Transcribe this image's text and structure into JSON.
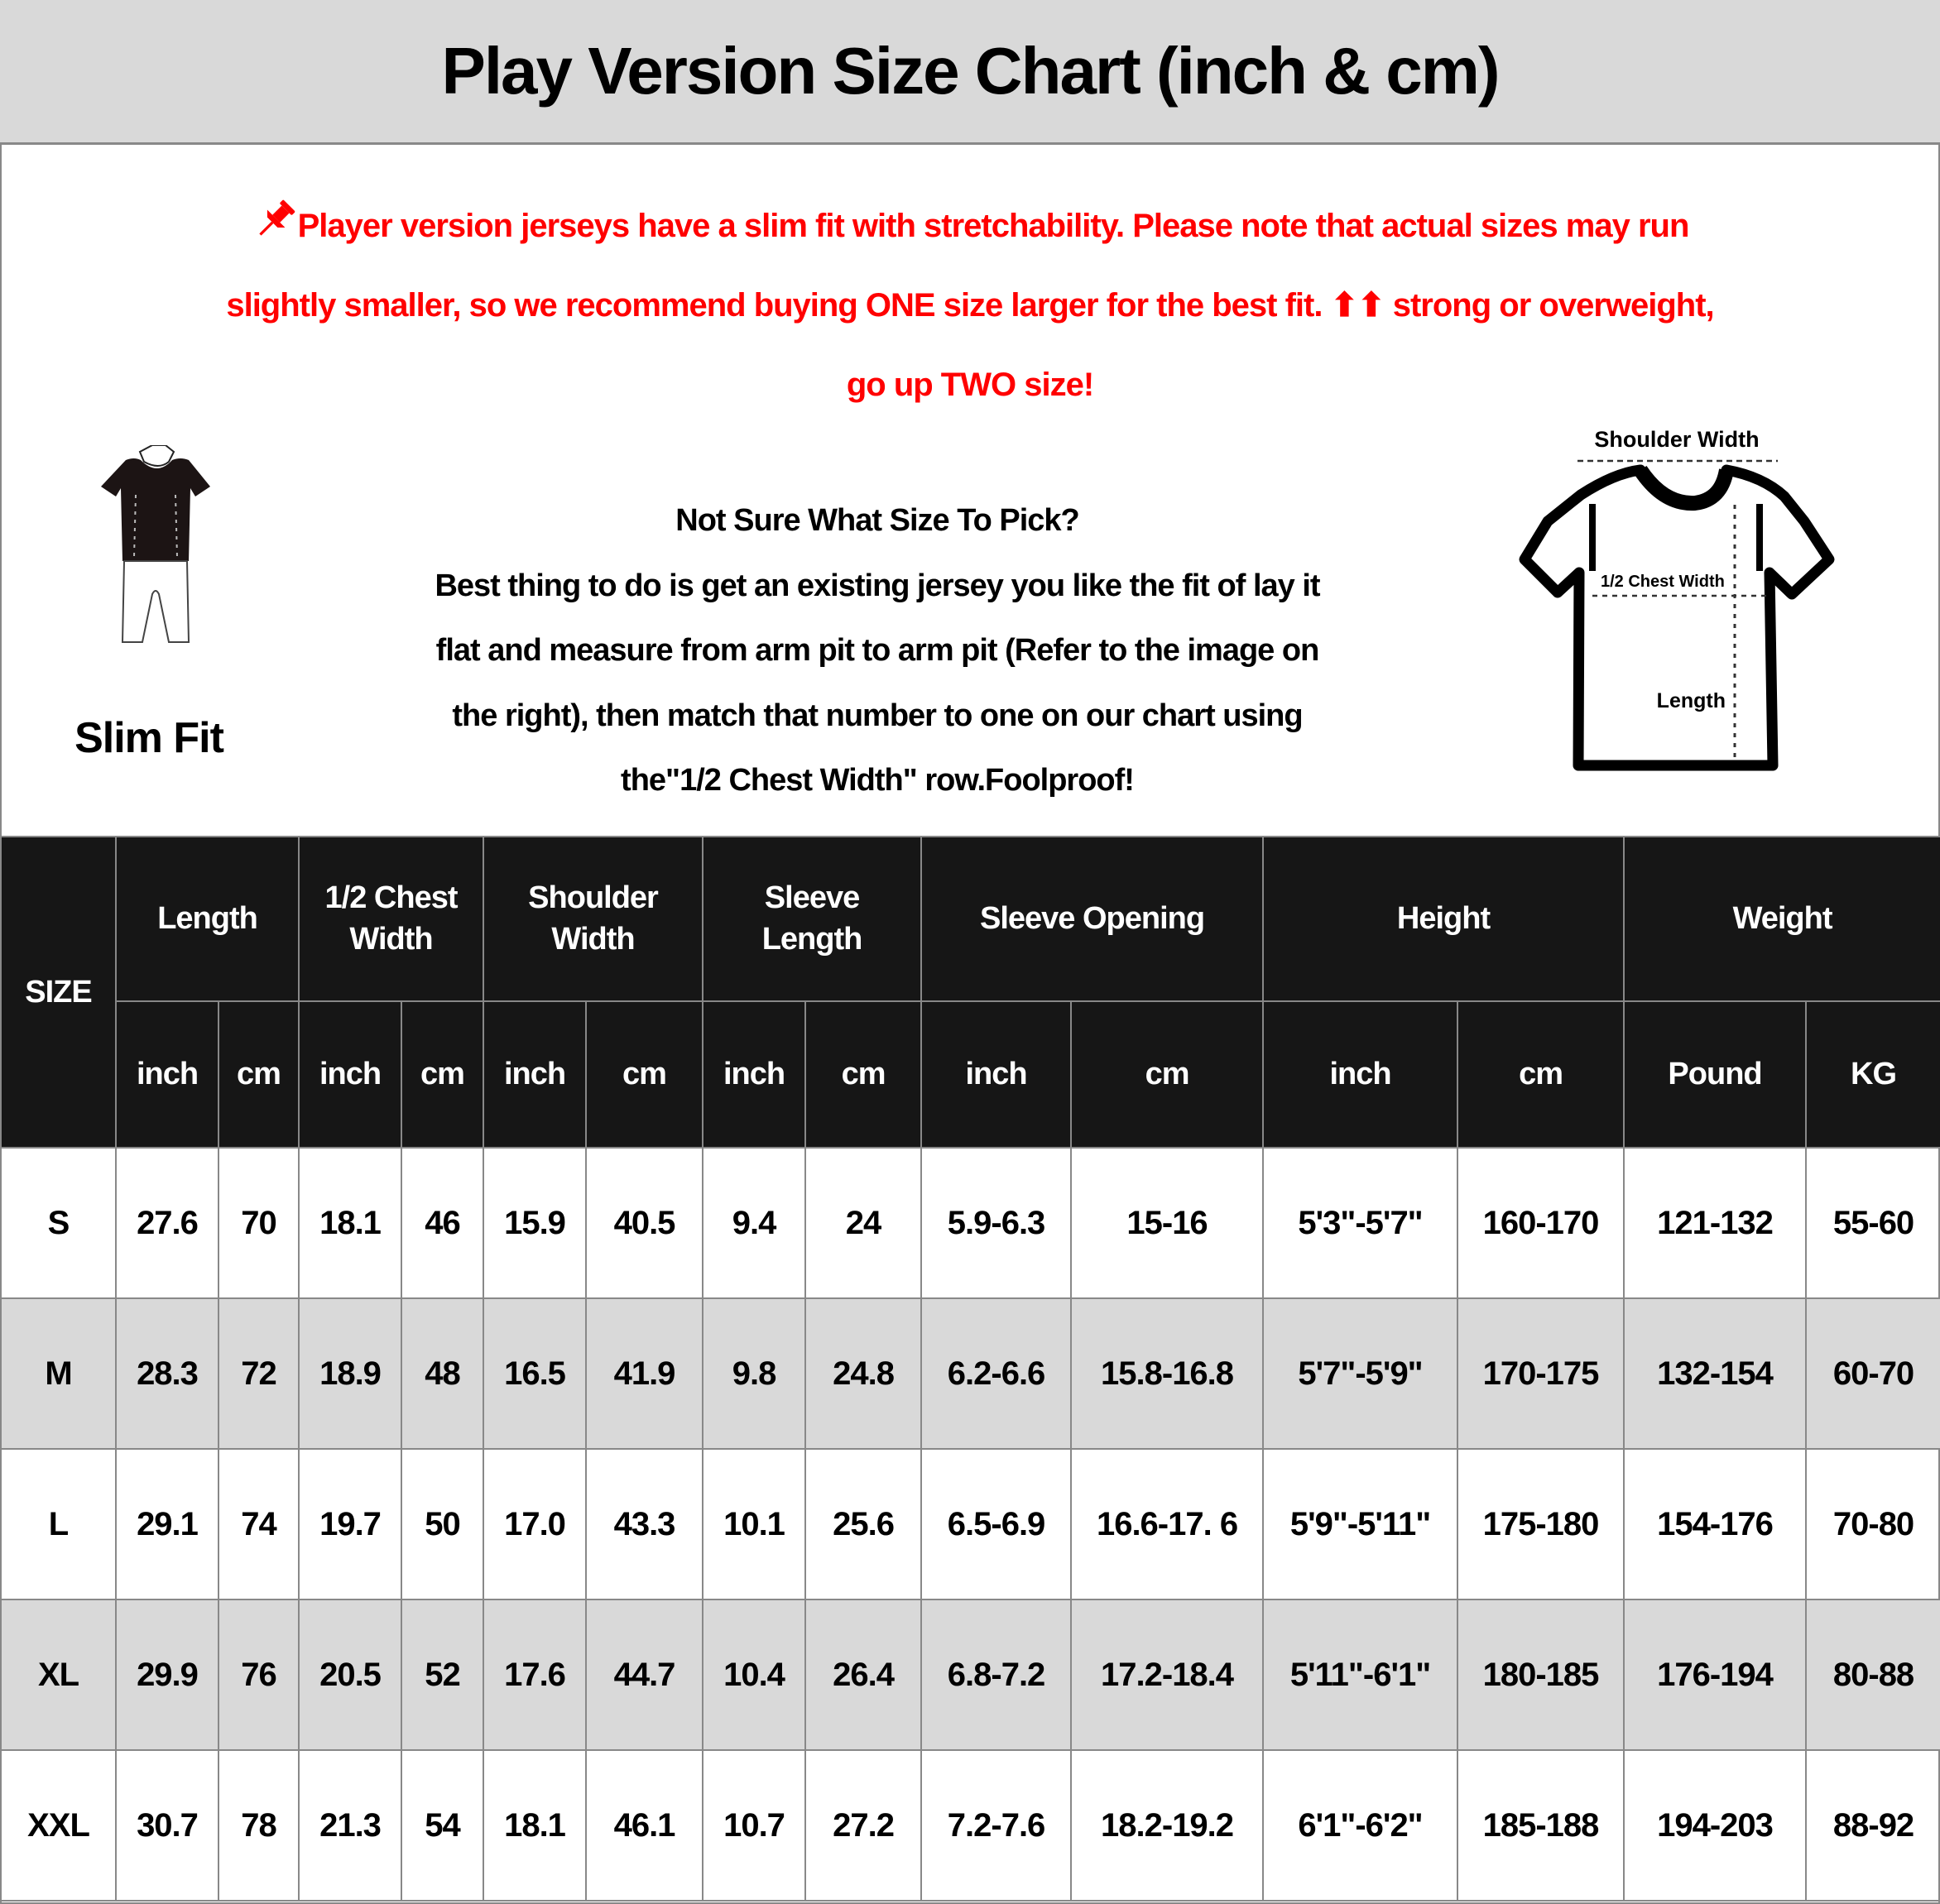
{
  "title": "Play Version Size Chart (inch & cm)",
  "notice": {
    "icon": "pushpin-icon",
    "color": "#ff0000",
    "lines": [
      "Player version jerseys have a slim fit with stretchability. Please note that actual sizes may run",
      "slightly smaller, so we recommend buying ONE size larger for the best fit. ⬆⬆ strong or overweight,",
      "go up TWO size!"
    ]
  },
  "slim_fit": {
    "label": "Slim Fit",
    "icon": "slim-fit-figure-icon"
  },
  "howto": {
    "lines": [
      "Not Sure What Size To Pick?",
      "Best thing to do is get an existing jersey you like the fit of lay it",
      "flat and measure from arm pit to arm pit (Refer to the image on",
      "the right), then match that number to one on our chart using",
      "the\"1/2 Chest Width\" row.Foolproof!"
    ]
  },
  "diagram": {
    "icon": "tshirt-measure-icon",
    "shoulder": "Shoulder Width",
    "chest": "1/2 Chest Width",
    "length": "Length"
  },
  "table": {
    "size_header": "SIZE",
    "groups": [
      {
        "label": [
          "Length"
        ],
        "units": [
          "inch",
          "cm"
        ]
      },
      {
        "label": [
          "1/2 Chest",
          "Width"
        ],
        "units": [
          "inch",
          "cm"
        ]
      },
      {
        "label": [
          "Shoulder",
          "Width"
        ],
        "units": [
          "inch",
          "cm"
        ]
      },
      {
        "label": [
          "Sleeve",
          "Length"
        ],
        "units": [
          "inch",
          "cm"
        ]
      },
      {
        "label": [
          "Sleeve Opening"
        ],
        "units": [
          "inch",
          "cm"
        ]
      },
      {
        "label": [
          "Height"
        ],
        "units": [
          "inch",
          "cm"
        ]
      },
      {
        "label": [
          "Weight"
        ],
        "units": [
          "Pound",
          "KG"
        ]
      }
    ],
    "rows": [
      [
        "S",
        "27.6",
        "70",
        "18.1",
        "46",
        "15.9",
        "40.5",
        "9.4",
        "24",
        "5.9-6.3",
        "15-16",
        "5'3\"-5'7\"",
        "160-170",
        "121-132",
        "55-60"
      ],
      [
        "M",
        "28.3",
        "72",
        "18.9",
        "48",
        "16.5",
        "41.9",
        "9.8",
        "24.8",
        "6.2-6.6",
        "15.8-16.8",
        "5'7\"-5'9\"",
        "170-175",
        "132-154",
        "60-70"
      ],
      [
        "L",
        "29.1",
        "74",
        "19.7",
        "50",
        "17.0",
        "43.3",
        "10.1",
        "25.6",
        "6.5-6.9",
        "16.6-17. 6",
        "5'9\"-5'11\"",
        "175-180",
        "154-176",
        "70-80"
      ],
      [
        "XL",
        "29.9",
        "76",
        "20.5",
        "52",
        "17.6",
        "44.7",
        "10.4",
        "26.4",
        "6.8-7.2",
        "17.2-18.4",
        "5'11\"-6'1\"",
        "180-185",
        "176-194",
        "80-88"
      ],
      [
        "XXL",
        "30.7",
        "78",
        "21.3",
        "54",
        "18.1",
        "46.1",
        "10.7",
        "27.2",
        "7.2-7.6",
        "18.2-19.2",
        "6'1\"-6'2\"",
        "185-188",
        "194-203",
        "88-92"
      ]
    ]
  }
}
